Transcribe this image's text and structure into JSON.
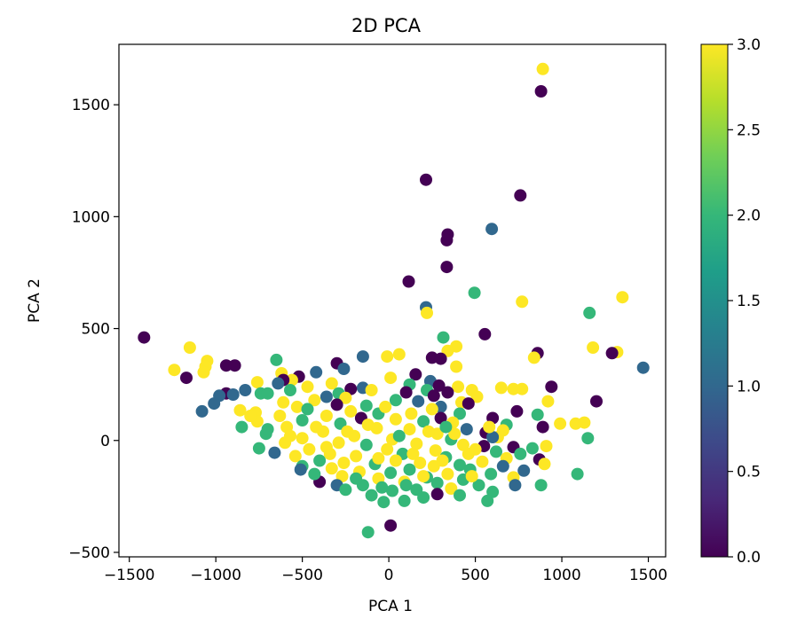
{
  "chart_data": {
    "type": "scatter",
    "title": "2D PCA",
    "xlabel": "PCA 1",
    "ylabel": "PCA 2",
    "xlim": [
      -1560,
      1600
    ],
    "ylim": [
      -520,
      1770
    ],
    "xticks": [
      -1500,
      -1000,
      -500,
      0,
      500,
      1000,
      1500
    ],
    "xtick_labels": [
      "−1500",
      "−1000",
      "−500",
      "0",
      "500",
      "1000",
      "1500"
    ],
    "yticks": [
      -500,
      0,
      500,
      1000,
      1500
    ],
    "ytick_labels": [
      "−500",
      "0",
      "500",
      "1000",
      "1500"
    ],
    "grid": false,
    "colorbar": {
      "colormap": "viridis",
      "range": [
        0,
        3
      ],
      "ticks": [
        0,
        0.5,
        1,
        1.5,
        2,
        2.5,
        3
      ],
      "tick_labels": [
        "0.0",
        "0.5",
        "1.0",
        "1.5",
        "2.0",
        "2.5",
        "3.0"
      ],
      "colors": [
        "#440154",
        "#482878",
        "#3e4989",
        "#31688e",
        "#26828e",
        "#1f9e89",
        "#35b779",
        "#6ece58",
        "#b5de2b",
        "#fde725"
      ]
    },
    "points": [
      {
        "x": 890,
        "y": 1660,
        "c": 3
      },
      {
        "x": 880,
        "y": 1560,
        "c": 0
      },
      {
        "x": 215,
        "y": 1165,
        "c": 0
      },
      {
        "x": 760,
        "y": 1095,
        "c": 0
      },
      {
        "x": 595,
        "y": 945,
        "c": 1
      },
      {
        "x": 340,
        "y": 920,
        "c": 0
      },
      {
        "x": 335,
        "y": 895,
        "c": 0
      },
      {
        "x": 335,
        "y": 775,
        "c": 0
      },
      {
        "x": 115,
        "y": 710,
        "c": 0
      },
      {
        "x": 495,
        "y": 660,
        "c": 2
      },
      {
        "x": 1350,
        "y": 640,
        "c": 3
      },
      {
        "x": 770,
        "y": 620,
        "c": 3
      },
      {
        "x": 215,
        "y": 595,
        "c": 1
      },
      {
        "x": 220,
        "y": 570,
        "c": 3
      },
      {
        "x": 1160,
        "y": 570,
        "c": 2
      },
      {
        "x": 555,
        "y": 475,
        "c": 0
      },
      {
        "x": -1415,
        "y": 460,
        "c": 0
      },
      {
        "x": 315,
        "y": 460,
        "c": 2
      },
      {
        "x": -1150,
        "y": 415,
        "c": 3
      },
      {
        "x": 1180,
        "y": 415,
        "c": 3
      },
      {
        "x": 390,
        "y": 420,
        "c": 3
      },
      {
        "x": 340,
        "y": 400,
        "c": 3
      },
      {
        "x": 60,
        "y": 385,
        "c": 3
      },
      {
        "x": 1320,
        "y": 395,
        "c": 3
      },
      {
        "x": 1290,
        "y": 390,
        "c": 0
      },
      {
        "x": 860,
        "y": 390,
        "c": 0
      },
      {
        "x": -150,
        "y": 375,
        "c": 1
      },
      {
        "x": -10,
        "y": 375,
        "c": 3
      },
      {
        "x": 840,
        "y": 370,
        "c": 3
      },
      {
        "x": 250,
        "y": 370,
        "c": 0
      },
      {
        "x": 300,
        "y": 365,
        "c": 0
      },
      {
        "x": -650,
        "y": 360,
        "c": 2
      },
      {
        "x": -1050,
        "y": 355,
        "c": 3
      },
      {
        "x": -300,
        "y": 345,
        "c": 0
      },
      {
        "x": -940,
        "y": 335,
        "c": 0
      },
      {
        "x": -890,
        "y": 335,
        "c": 0
      },
      {
        "x": 390,
        "y": 330,
        "c": 3
      },
      {
        "x": -1060,
        "y": 330,
        "c": 3
      },
      {
        "x": -1240,
        "y": 315,
        "c": 3
      },
      {
        "x": -260,
        "y": 320,
        "c": 1
      },
      {
        "x": 1470,
        "y": 325,
        "c": 1
      },
      {
        "x": -420,
        "y": 305,
        "c": 1
      },
      {
        "x": -1070,
        "y": 305,
        "c": 3
      },
      {
        "x": -620,
        "y": 300,
        "c": 3
      },
      {
        "x": 155,
        "y": 295,
        "c": 0
      },
      {
        "x": -520,
        "y": 285,
        "c": 0
      },
      {
        "x": -1170,
        "y": 280,
        "c": 0
      },
      {
        "x": 10,
        "y": 280,
        "c": 3
      },
      {
        "x": -560,
        "y": 270,
        "c": 3
      },
      {
        "x": -610,
        "y": 270,
        "c": 0
      },
      {
        "x": 240,
        "y": 265,
        "c": 1
      },
      {
        "x": -760,
        "y": 260,
        "c": 3
      },
      {
        "x": -640,
        "y": 255,
        "c": 1
      },
      {
        "x": -330,
        "y": 255,
        "c": 3
      },
      {
        "x": 120,
        "y": 250,
        "c": 2
      },
      {
        "x": 290,
        "y": 245,
        "c": 0
      },
      {
        "x": 400,
        "y": 240,
        "c": 3
      },
      {
        "x": 940,
        "y": 240,
        "c": 0
      },
      {
        "x": -470,
        "y": 240,
        "c": 3
      },
      {
        "x": -150,
        "y": 235,
        "c": 1
      },
      {
        "x": 650,
        "y": 235,
        "c": 3
      },
      {
        "x": 720,
        "y": 230,
        "c": 3
      },
      {
        "x": 770,
        "y": 230,
        "c": 3
      },
      {
        "x": 220,
        "y": 225,
        "c": 2
      },
      {
        "x": -570,
        "y": 225,
        "c": 2
      },
      {
        "x": -220,
        "y": 230,
        "c": 0
      },
      {
        "x": -830,
        "y": 225,
        "c": 1
      },
      {
        "x": -100,
        "y": 225,
        "c": 3
      },
      {
        "x": 480,
        "y": 225,
        "c": 3
      },
      {
        "x": -940,
        "y": 210,
        "c": 0
      },
      {
        "x": -900,
        "y": 205,
        "c": 1
      },
      {
        "x": -740,
        "y": 210,
        "c": 2
      },
      {
        "x": 100,
        "y": 215,
        "c": 0
      },
      {
        "x": 340,
        "y": 215,
        "c": 0
      },
      {
        "x": -290,
        "y": 210,
        "c": 2
      },
      {
        "x": -700,
        "y": 210,
        "c": 2
      },
      {
        "x": -980,
        "y": 200,
        "c": 1
      },
      {
        "x": 260,
        "y": 200,
        "c": 0
      },
      {
        "x": -360,
        "y": 195,
        "c": 1
      },
      {
        "x": 510,
        "y": 195,
        "c": 3
      },
      {
        "x": -250,
        "y": 190,
        "c": 3
      },
      {
        "x": -430,
        "y": 180,
        "c": 3
      },
      {
        "x": 920,
        "y": 175,
        "c": 3
      },
      {
        "x": 1200,
        "y": 175,
        "c": 0
      },
      {
        "x": -1010,
        "y": 165,
        "c": 1
      },
      {
        "x": 40,
        "y": 180,
        "c": 2
      },
      {
        "x": 170,
        "y": 175,
        "c": 1
      },
      {
        "x": -610,
        "y": 170,
        "c": 3
      },
      {
        "x": 420,
        "y": 170,
        "c": 3
      },
      {
        "x": -300,
        "y": 160,
        "c": 0
      },
      {
        "x": 460,
        "y": 165,
        "c": 0
      },
      {
        "x": -130,
        "y": 155,
        "c": 2
      },
      {
        "x": -530,
        "y": 150,
        "c": 3
      },
      {
        "x": 300,
        "y": 150,
        "c": 1
      },
      {
        "x": -1080,
        "y": 130,
        "c": 1
      },
      {
        "x": -860,
        "y": 135,
        "c": 3
      },
      {
        "x": -470,
        "y": 140,
        "c": 2
      },
      {
        "x": 250,
        "y": 140,
        "c": 3
      },
      {
        "x": -770,
        "y": 125,
        "c": 3
      },
      {
        "x": 740,
        "y": 130,
        "c": 0
      },
      {
        "x": -220,
        "y": 130,
        "c": 3
      },
      {
        "x": -60,
        "y": 120,
        "c": 2
      },
      {
        "x": 130,
        "y": 120,
        "c": 3
      },
      {
        "x": 410,
        "y": 120,
        "c": 2
      },
      {
        "x": 860,
        "y": 115,
        "c": 2
      },
      {
        "x": -630,
        "y": 110,
        "c": 3
      },
      {
        "x": -160,
        "y": 100,
        "c": 0
      },
      {
        "x": 600,
        "y": 100,
        "c": 0
      },
      {
        "x": -360,
        "y": 110,
        "c": 3
      },
      {
        "x": 300,
        "y": 100,
        "c": 0
      },
      {
        "x": 40,
        "y": 95,
        "c": 3
      },
      {
        "x": -500,
        "y": 90,
        "c": 2
      },
      {
        "x": -760,
        "y": 85,
        "c": 3
      },
      {
        "x": 200,
        "y": 85,
        "c": 2
      },
      {
        "x": 990,
        "y": 75,
        "c": 3
      },
      {
        "x": 1080,
        "y": 75,
        "c": 3
      },
      {
        "x": 1130,
        "y": 80,
        "c": 3
      },
      {
        "x": 370,
        "y": 80,
        "c": 3
      },
      {
        "x": -280,
        "y": 75,
        "c": 2
      },
      {
        "x": 680,
        "y": 70,
        "c": 2
      },
      {
        "x": 890,
        "y": 60,
        "c": 0
      },
      {
        "x": -850,
        "y": 60,
        "c": 2
      },
      {
        "x": -590,
        "y": 60,
        "c": 3
      },
      {
        "x": -70,
        "y": 55,
        "c": 3
      },
      {
        "x": 120,
        "y": 50,
        "c": 3
      },
      {
        "x": 450,
        "y": 50,
        "c": 1
      },
      {
        "x": 660,
        "y": 45,
        "c": 3
      },
      {
        "x": -380,
        "y": 40,
        "c": 3
      },
      {
        "x": 560,
        "y": 35,
        "c": 0
      },
      {
        "x": 280,
        "y": 30,
        "c": 3
      },
      {
        "x": -710,
        "y": 30,
        "c": 2
      },
      {
        "x": -200,
        "y": 20,
        "c": 3
      },
      {
        "x": 630,
        "y": 15,
        "c": 3
      },
      {
        "x": 600,
        "y": 15,
        "c": 1
      },
      {
        "x": 1150,
        "y": 10,
        "c": 2
      },
      {
        "x": -500,
        "y": 10,
        "c": 3
      },
      {
        "x": 20,
        "y": 5,
        "c": 3
      },
      {
        "x": 360,
        "y": 5,
        "c": 2
      },
      {
        "x": 910,
        "y": -25,
        "c": 3
      },
      {
        "x": -600,
        "y": -10,
        "c": 3
      },
      {
        "x": -290,
        "y": -10,
        "c": 3
      },
      {
        "x": 160,
        "y": -15,
        "c": 3
      },
      {
        "x": -130,
        "y": -20,
        "c": 2
      },
      {
        "x": 430,
        "y": -20,
        "c": 3
      },
      {
        "x": 550,
        "y": -25,
        "c": 0
      },
      {
        "x": 720,
        "y": -30,
        "c": 0
      },
      {
        "x": -750,
        "y": -35,
        "c": 2
      },
      {
        "x": -460,
        "y": -40,
        "c": 3
      },
      {
        "x": 830,
        "y": -35,
        "c": 2
      },
      {
        "x": -10,
        "y": -40,
        "c": 3
      },
      {
        "x": 270,
        "y": -45,
        "c": 3
      },
      {
        "x": -660,
        "y": -55,
        "c": 1
      },
      {
        "x": 620,
        "y": -50,
        "c": 2
      },
      {
        "x": -340,
        "y": -60,
        "c": 3
      },
      {
        "x": 80,
        "y": -60,
        "c": 2
      },
      {
        "x": 460,
        "y": -60,
        "c": 3
      },
      {
        "x": 760,
        "y": -60,
        "c": 2
      },
      {
        "x": -540,
        "y": -70,
        "c": 3
      },
      {
        "x": -190,
        "y": -70,
        "c": 3
      },
      {
        "x": 330,
        "y": -75,
        "c": 2
      },
      {
        "x": 680,
        "y": -80,
        "c": 3
      },
      {
        "x": 870,
        "y": -85,
        "c": 0
      },
      {
        "x": -400,
        "y": -90,
        "c": 2
      },
      {
        "x": 40,
        "y": -90,
        "c": 3
      },
      {
        "x": 540,
        "y": -95,
        "c": 3
      },
      {
        "x": -260,
        "y": -100,
        "c": 3
      },
      {
        "x": 900,
        "y": -105,
        "c": 3
      },
      {
        "x": 180,
        "y": -100,
        "c": 3
      },
      {
        "x": -80,
        "y": -105,
        "c": 2
      },
      {
        "x": 410,
        "y": -110,
        "c": 2
      },
      {
        "x": -500,
        "y": -115,
        "c": 2
      },
      {
        "x": 260,
        "y": -115,
        "c": 3
      },
      {
        "x": 660,
        "y": -115,
        "c": 1
      },
      {
        "x": 1090,
        "y": -150,
        "c": 2
      },
      {
        "x": -330,
        "y": -125,
        "c": 3
      },
      {
        "x": 120,
        "y": -130,
        "c": 2
      },
      {
        "x": 470,
        "y": -130,
        "c": 2
      },
      {
        "x": 780,
        "y": -135,
        "c": 1
      },
      {
        "x": -510,
        "y": -130,
        "c": 1
      },
      {
        "x": -170,
        "y": -140,
        "c": 3
      },
      {
        "x": 10,
        "y": -145,
        "c": 2
      },
      {
        "x": 340,
        "y": -150,
        "c": 3
      },
      {
        "x": 590,
        "y": -150,
        "c": 2
      },
      {
        "x": -270,
        "y": -160,
        "c": 3
      },
      {
        "x": 220,
        "y": -165,
        "c": 2
      },
      {
        "x": 720,
        "y": -165,
        "c": 3
      },
      {
        "x": -60,
        "y": -170,
        "c": 3
      },
      {
        "x": -400,
        "y": -185,
        "c": 0
      },
      {
        "x": 430,
        "y": -175,
        "c": 2
      },
      {
        "x": -300,
        "y": -200,
        "c": 1
      },
      {
        "x": 880,
        "y": -200,
        "c": 2
      },
      {
        "x": 90,
        "y": -185,
        "c": 3
      },
      {
        "x": 280,
        "y": -190,
        "c": 2
      },
      {
        "x": 730,
        "y": -200,
        "c": 1
      },
      {
        "x": -150,
        "y": -200,
        "c": 2
      },
      {
        "x": 520,
        "y": -200,
        "c": 2
      },
      {
        "x": -40,
        "y": -210,
        "c": 2
      },
      {
        "x": 360,
        "y": -215,
        "c": 3
      },
      {
        "x": 160,
        "y": -220,
        "c": 2
      },
      {
        "x": -250,
        "y": -220,
        "c": 2
      },
      {
        "x": 20,
        "y": -225,
        "c": 2
      },
      {
        "x": 600,
        "y": -230,
        "c": 2
      },
      {
        "x": 280,
        "y": -240,
        "c": 0
      },
      {
        "x": -100,
        "y": -245,
        "c": 2
      },
      {
        "x": 410,
        "y": -245,
        "c": 2
      },
      {
        "x": 200,
        "y": -255,
        "c": 2
      },
      {
        "x": 90,
        "y": -270,
        "c": 2
      },
      {
        "x": 570,
        "y": -270,
        "c": 2
      },
      {
        "x": -30,
        "y": -275,
        "c": 2
      },
      {
        "x": -120,
        "y": -410,
        "c": 2
      },
      {
        "x": 10,
        "y": -380,
        "c": 0
      },
      {
        "x": -700,
        "y": 50,
        "c": 2
      },
      {
        "x": -420,
        "y": 60,
        "c": 3
      },
      {
        "x": -120,
        "y": 70,
        "c": 3
      },
      {
        "x": 60,
        "y": 20,
        "c": 2
      },
      {
        "x": 230,
        "y": 40,
        "c": 3
      },
      {
        "x": 500,
        "y": -40,
        "c": 3
      },
      {
        "x": -360,
        "y": -30,
        "c": 3
      },
      {
        "x": -240,
        "y": 40,
        "c": 3
      },
      {
        "x": 140,
        "y": -60,
        "c": 3
      },
      {
        "x": 380,
        "y": 30,
        "c": 3
      },
      {
        "x": -60,
        "y": -80,
        "c": 3
      },
      {
        "x": 310,
        "y": -90,
        "c": 3
      },
      {
        "x": 200,
        "y": -160,
        "c": 3
      },
      {
        "x": -190,
        "y": -170,
        "c": 2
      },
      {
        "x": 480,
        "y": -160,
        "c": 3
      },
      {
        "x": -430,
        "y": -150,
        "c": 2
      },
      {
        "x": -570,
        "y": 20,
        "c": 3
      },
      {
        "x": -800,
        "y": 110,
        "c": 3
      },
      {
        "x": -20,
        "y": 150,
        "c": 3
      },
      {
        "x": 330,
        "y": 60,
        "c": 2
      },
      {
        "x": 580,
        "y": 60,
        "c": 3
      },
      {
        "x": 100,
        "y": -200,
        "c": 2
      }
    ]
  }
}
